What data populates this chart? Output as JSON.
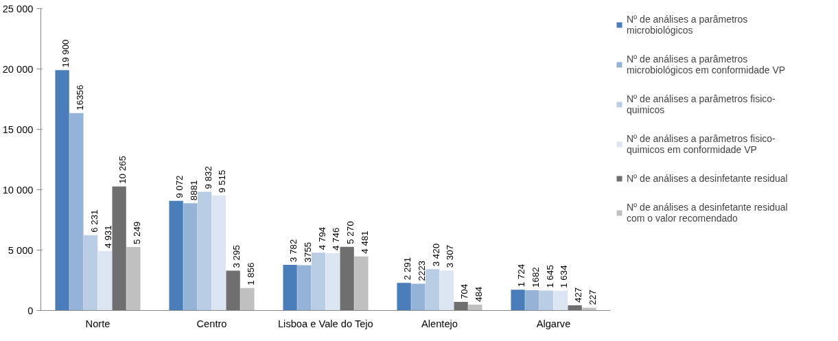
{
  "chart_data": {
    "type": "bar",
    "categories": [
      "Norte",
      "Centro",
      "Lisboa e Vale do Tejo",
      "Alentejo",
      "Algarve"
    ],
    "ylim": [
      0,
      25000
    ],
    "yticks": [
      {
        "value": 0,
        "label": "0"
      },
      {
        "value": 5000,
        "label": "5 000"
      },
      {
        "value": 10000,
        "label": "10 000"
      },
      {
        "value": 15000,
        "label": "15 000"
      },
      {
        "value": 20000,
        "label": "20 000"
      },
      {
        "value": 25000,
        "label": "25 000"
      }
    ],
    "grid": false,
    "legend": "right",
    "series": [
      {
        "name": "Nº de análises a parâmetros microbiológicos",
        "color": "#4a7ebb",
        "values": [
          19900,
          9072,
          3782,
          2291,
          1724
        ],
        "value_labels": [
          "19 900",
          "9 072",
          "3 782",
          "2 291",
          "1 724"
        ]
      },
      {
        "name": "Nº de análises a parâmetros microbiológicos em conformidade VP",
        "color": "#95b3d7",
        "values": [
          16356,
          8881,
          3755,
          2223,
          1682
        ],
        "value_labels": [
          "16356",
          "8881",
          "3755",
          "2223",
          "1682"
        ]
      },
      {
        "name": "Nº de análises a parâmetros fisico-quimicos",
        "color": "#b9cde5",
        "values": [
          6231,
          9832,
          4794,
          3420,
          1645
        ],
        "value_labels": [
          "6 231",
          "9 832",
          "4 794",
          "3 420",
          "1 645"
        ]
      },
      {
        "name": "Nº de análises a parâmetros fisico-quimicos em conformidade VP",
        "color": "#dce6f2",
        "values": [
          4931,
          9515,
          4746,
          3307,
          1634
        ],
        "value_labels": [
          "4 931",
          "9 515",
          "4 746",
          "3 307",
          "1 634"
        ]
      },
      {
        "name": "Nº de análises a desinfetante residual",
        "color": "#6f6f6f",
        "values": [
          10265,
          3295,
          5270,
          704,
          427
        ],
        "value_labels": [
          "10 265",
          "3 295",
          "5 270",
          "704",
          "427"
        ]
      },
      {
        "name": "Nº de análises a desinfetante residual com o valor recomendado",
        "color": "#c0c0c0",
        "values": [
          5249,
          1856,
          4481,
          484,
          227
        ],
        "value_labels": [
          "5 249",
          "1 856",
          "4 481",
          "484",
          "227"
        ]
      }
    ]
  }
}
